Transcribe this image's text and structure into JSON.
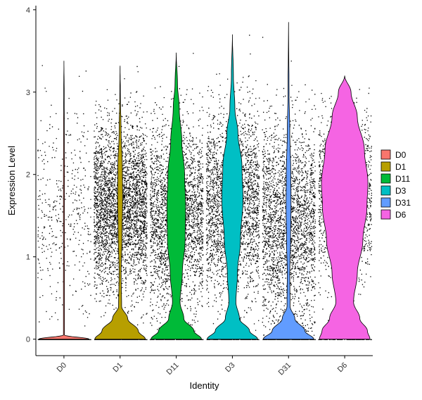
{
  "chart_data": {
    "type": "violin",
    "xlabel": "Identity",
    "ylabel": "Expression Level",
    "ylim": [
      -0.2,
      4.05
    ],
    "yticks": [
      0,
      1,
      2,
      3,
      4
    ],
    "categories": [
      "D0",
      "D1",
      "D11",
      "D3",
      "D31",
      "D6"
    ],
    "colors": {
      "D0": "#F8766D",
      "D1": "#B79F00",
      "D11": "#00BA38",
      "D3": "#00BFC4",
      "D31": "#619CFF",
      "D6": "#F564E3"
    },
    "groups": [
      {
        "name": "D0",
        "max": 3.38,
        "n_points": 900,
        "zero_frac": 0.55,
        "mean": 1.6,
        "sd": 0.6,
        "profile": [
          [
            0,
            1.0
          ],
          [
            0.05,
            0.02
          ],
          [
            0.5,
            0.02
          ],
          [
            1.0,
            0.02
          ],
          [
            1.5,
            0.02
          ],
          [
            2.0,
            0.02
          ],
          [
            2.5,
            0.015
          ],
          [
            3.0,
            0.01
          ],
          [
            3.38,
            0.0
          ]
        ]
      },
      {
        "name": "D1",
        "max": 3.32,
        "n_points": 4000,
        "zero_frac": 0.05,
        "mean": 1.6,
        "sd": 0.5,
        "profile": [
          [
            0,
            1.0
          ],
          [
            0.1,
            0.72
          ],
          [
            0.25,
            0.3
          ],
          [
            0.4,
            0.06
          ],
          [
            0.8,
            0.04
          ],
          [
            1.3,
            0.08
          ],
          [
            1.7,
            0.1
          ],
          [
            2.1,
            0.09
          ],
          [
            2.5,
            0.04
          ],
          [
            3.0,
            0.01
          ],
          [
            3.32,
            0.0
          ]
        ]
      },
      {
        "name": "D11",
        "max": 3.48,
        "n_points": 4500,
        "zero_frac": 0.05,
        "mean": 1.5,
        "sd": 0.55,
        "profile": [
          [
            0,
            1.0
          ],
          [
            0.1,
            0.7
          ],
          [
            0.25,
            0.3
          ],
          [
            0.45,
            0.15
          ],
          [
            0.8,
            0.24
          ],
          [
            1.2,
            0.35
          ],
          [
            1.6,
            0.37
          ],
          [
            2.0,
            0.33
          ],
          [
            2.4,
            0.22
          ],
          [
            2.8,
            0.12
          ],
          [
            3.1,
            0.05
          ],
          [
            3.48,
            0.0
          ]
        ]
      },
      {
        "name": "D3",
        "max": 3.7,
        "n_points": 4300,
        "zero_frac": 0.05,
        "mean": 1.65,
        "sd": 0.55,
        "profile": [
          [
            0,
            1.0
          ],
          [
            0.1,
            0.68
          ],
          [
            0.25,
            0.28
          ],
          [
            0.45,
            0.14
          ],
          [
            0.8,
            0.2
          ],
          [
            1.2,
            0.32
          ],
          [
            1.7,
            0.42
          ],
          [
            2.1,
            0.38
          ],
          [
            2.5,
            0.22
          ],
          [
            2.8,
            0.1
          ],
          [
            3.2,
            0.04
          ],
          [
            3.7,
            0.0
          ]
        ]
      },
      {
        "name": "D31",
        "max": 3.85,
        "n_points": 5200,
        "zero_frac": 0.05,
        "mean": 1.4,
        "sd": 0.6,
        "profile": [
          [
            0,
            1.0
          ],
          [
            0.1,
            0.65
          ],
          [
            0.25,
            0.25
          ],
          [
            0.4,
            0.06
          ],
          [
            0.8,
            0.05
          ],
          [
            1.2,
            0.08
          ],
          [
            1.6,
            0.1
          ],
          [
            2.0,
            0.09
          ],
          [
            2.5,
            0.05
          ],
          [
            3.0,
            0.02
          ],
          [
            3.85,
            0.0
          ]
        ]
      },
      {
        "name": "D6",
        "max": 3.2,
        "n_points": 1700,
        "zero_frac": 0.05,
        "mean": 1.75,
        "sd": 0.5,
        "profile": [
          [
            0,
            1.0
          ],
          [
            0.1,
            0.9
          ],
          [
            0.25,
            0.6
          ],
          [
            0.45,
            0.35
          ],
          [
            0.8,
            0.5
          ],
          [
            1.2,
            0.72
          ],
          [
            1.6,
            0.88
          ],
          [
            1.9,
            0.92
          ],
          [
            2.3,
            0.78
          ],
          [
            2.7,
            0.5
          ],
          [
            3.0,
            0.25
          ],
          [
            3.2,
            0.0
          ]
        ]
      }
    ],
    "legend": {
      "position": "right",
      "entries": [
        "D0",
        "D1",
        "D11",
        "D3",
        "D31",
        "D6"
      ]
    },
    "grid": false
  }
}
